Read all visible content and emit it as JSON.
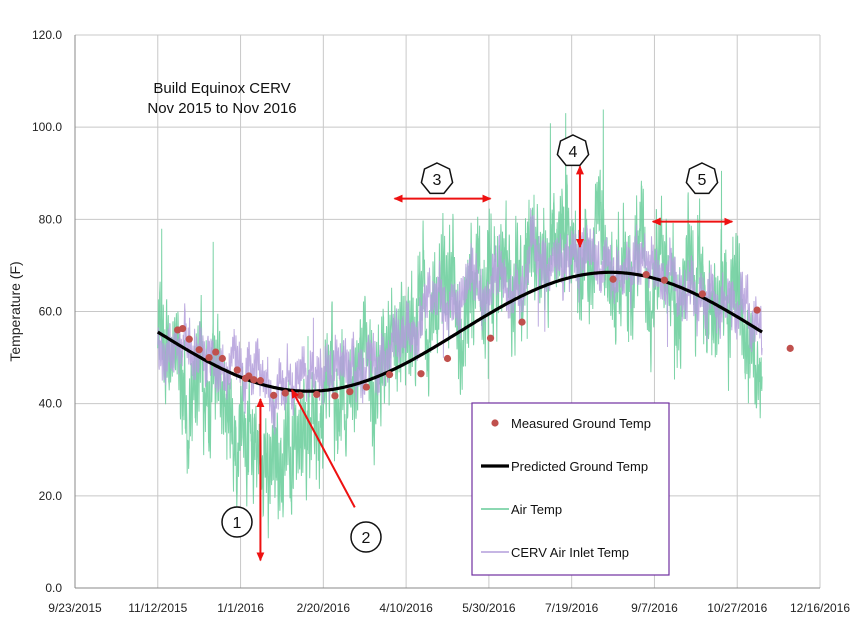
{
  "chart_data": {
    "type": "line",
    "title_lines": [
      "Build Equinox CERV",
      "Nov 2015 to Nov 2016"
    ],
    "ylabel": "Temperature (F)",
    "ylim": [
      0,
      120
    ],
    "yticks": [
      "0.0",
      "20.0",
      "40.0",
      "60.0",
      "80.0",
      "100.0",
      "120.0"
    ],
    "yticks_values": [
      0,
      20,
      40,
      60,
      80,
      100,
      120
    ],
    "xlim": [
      "2015-09-23",
      "2016-12-16"
    ],
    "xticks": [
      "9/23/2015",
      "11/12/2015",
      "1/1/2016",
      "2/20/2016",
      "4/10/2016",
      "5/30/2016",
      "7/19/2016",
      "9/7/2016",
      "10/27/2016",
      "12/16/2016"
    ],
    "grid": true,
    "legend_position": "bottom-right",
    "series": [
      {
        "name": "Measured Ground Temp",
        "kind": "scatter",
        "color": "#c0504d",
        "points": [
          [
            "2015-11-24",
            56.0
          ],
          [
            "2015-11-27",
            56.3
          ],
          [
            "2015-12-01",
            54.0
          ],
          [
            "2015-12-07",
            51.7
          ],
          [
            "2015-12-13",
            50.0
          ],
          [
            "2015-12-17",
            51.2
          ],
          [
            "2015-12-21",
            49.8
          ],
          [
            "2015-12-30",
            47.3
          ],
          [
            "2016-01-04",
            45.5
          ],
          [
            "2016-01-06",
            46.0
          ],
          [
            "2016-01-09",
            45.2
          ],
          [
            "2016-01-13",
            45.0
          ],
          [
            "2016-01-21",
            41.8
          ],
          [
            "2016-01-28",
            42.3
          ],
          [
            "2016-02-06",
            41.8
          ],
          [
            "2016-02-16",
            42.0
          ],
          [
            "2016-02-27",
            41.7
          ],
          [
            "2016-03-07",
            42.6
          ],
          [
            "2016-03-17",
            43.6
          ],
          [
            "2016-03-31",
            46.3
          ],
          [
            "2016-04-19",
            46.5
          ],
          [
            "2016-05-05",
            49.8
          ],
          [
            "2016-05-31",
            54.2
          ],
          [
            "2016-06-19",
            57.7
          ],
          [
            "2016-08-13",
            67.0
          ],
          [
            "2016-09-02",
            68.0
          ],
          [
            "2016-09-13",
            66.8
          ],
          [
            "2016-10-06",
            63.8
          ],
          [
            "2016-11-08",
            60.3
          ],
          [
            "2016-11-28",
            52.0
          ]
        ]
      },
      {
        "name": "Predicted Ground Temp",
        "kind": "sinusoid",
        "color": "#000000",
        "start": "2015-11-12",
        "end": "2016-11-11",
        "mean": 55.6,
        "amplitude": 12.9,
        "min_date": "2016-02-11"
      },
      {
        "name": "Air Temp",
        "kind": "noisy_line",
        "color": "#66cc99",
        "start": "2015-11-12",
        "end": "2016-11-11",
        "seed": 7,
        "samples_per_day": 8,
        "base": [
          [
            "2015-11-12",
            52
          ],
          [
            "2015-12-01",
            47
          ],
          [
            "2016-01-01",
            35
          ],
          [
            "2016-01-20",
            28
          ],
          [
            "2016-02-10",
            34
          ],
          [
            "2016-03-10",
            42
          ],
          [
            "2016-04-10",
            55
          ],
          [
            "2016-05-10",
            62
          ],
          [
            "2016-06-10",
            68
          ],
          [
            "2016-07-10",
            72
          ],
          [
            "2016-08-10",
            72
          ],
          [
            "2016-09-10",
            68
          ],
          [
            "2016-10-10",
            62
          ],
          [
            "2016-11-11",
            55
          ]
        ],
        "spread": 14
      },
      {
        "name": "CERV Air Inlet Temp",
        "kind": "noisy_line",
        "color": "#b39ddb",
        "start": "2015-11-12",
        "end": "2016-11-11",
        "seed": 19,
        "samples_per_day": 8,
        "base": [
          [
            "2015-11-12",
            55
          ],
          [
            "2015-12-01",
            52
          ],
          [
            "2016-01-01",
            47
          ],
          [
            "2016-02-01",
            44
          ],
          [
            "2016-03-01",
            47
          ],
          [
            "2016-04-01",
            54
          ],
          [
            "2016-05-01",
            62
          ],
          [
            "2016-06-01",
            67
          ],
          [
            "2016-07-01",
            70
          ],
          [
            "2016-08-01",
            71
          ],
          [
            "2016-09-01",
            69
          ],
          [
            "2016-10-01",
            64
          ],
          [
            "2016-11-11",
            58
          ]
        ],
        "spread": 7
      }
    ],
    "annotations": [
      {
        "label": "1",
        "shape": "circle",
        "arrow_type": "double_vertical",
        "from": [
          "2016-01-13",
          41
        ],
        "to": [
          "2016-01-13",
          6
        ]
      },
      {
        "label": "2",
        "shape": "circle",
        "arrow_type": "pointer",
        "from": [
          "2016-03-10",
          17.5
        ],
        "to": [
          "2016-02-01",
          43
        ]
      },
      {
        "label": "3",
        "shape": "heptagon",
        "arrow_type": "double_horizontal",
        "from": [
          "2016-04-03",
          84.5
        ],
        "to": [
          "2016-05-31",
          84.5
        ]
      },
      {
        "label": "4",
        "shape": "heptagon",
        "arrow_type": "double_vertical",
        "from": [
          "2016-07-24",
          91.5
        ],
        "to": [
          "2016-07-24",
          74
        ]
      },
      {
        "label": "5",
        "shape": "heptagon",
        "arrow_type": "double_horizontal",
        "from": [
          "2016-09-06",
          79.5
        ],
        "to": [
          "2016-10-24",
          79.5
        ]
      }
    ]
  }
}
